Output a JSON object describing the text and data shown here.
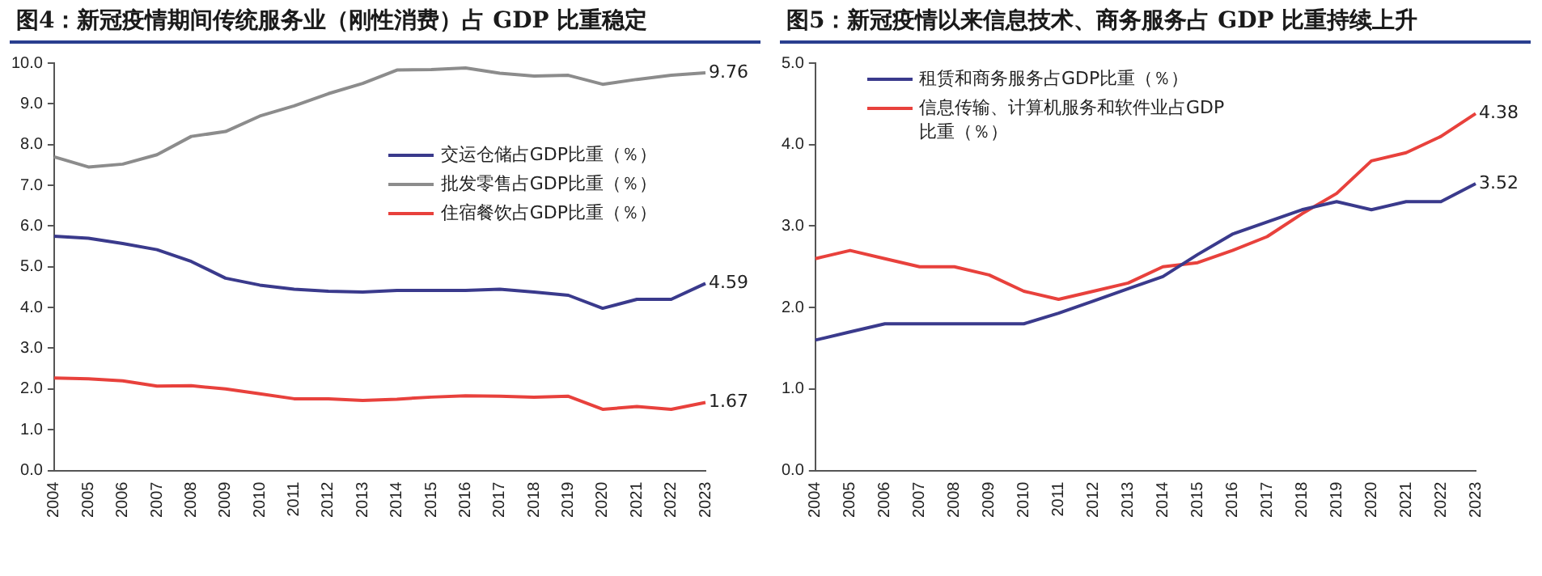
{
  "chart_data": [
    {
      "type": "line",
      "title": "图4：新冠疫情期间传统服务业（刚性消费）占 GDP 比重稳定",
      "categories": [
        "2004",
        "2005",
        "2006",
        "2007",
        "2008",
        "2009",
        "2010",
        "2011",
        "2012",
        "2013",
        "2014",
        "2015",
        "2016",
        "2017",
        "2018",
        "2019",
        "2020",
        "2021",
        "2022",
        "2023"
      ],
      "series": [
        {
          "name": "交运仓储占GDP比重（％）",
          "color": "#3a3a8c",
          "values": [
            5.75,
            5.7,
            5.57,
            5.42,
            5.13,
            4.72,
            4.55,
            4.45,
            4.4,
            4.38,
            4.42,
            4.42,
            4.42,
            4.45,
            4.38,
            4.3,
            3.98,
            4.2,
            4.2,
            4.59
          ],
          "value_labels": [
            null,
            null,
            null,
            null,
            null,
            null,
            null,
            null,
            null,
            null,
            null,
            null,
            null,
            null,
            null,
            null,
            null,
            null,
            null,
            "4.59"
          ]
        },
        {
          "name": "批发零售占GDP比重（％）",
          "color": "#8c8c8c",
          "values": [
            7.7,
            7.45,
            7.52,
            7.75,
            8.2,
            8.32,
            8.7,
            8.95,
            9.25,
            9.5,
            9.83,
            9.84,
            9.88,
            9.75,
            9.68,
            9.7,
            9.48,
            9.6,
            9.7,
            9.76
          ],
          "value_labels": [
            null,
            null,
            null,
            null,
            null,
            null,
            null,
            null,
            null,
            null,
            null,
            null,
            null,
            null,
            null,
            null,
            null,
            null,
            null,
            "9.76"
          ]
        },
        {
          "name": "住宿餐饮占GDP比重（％）",
          "color": "#e8413c",
          "values": [
            2.27,
            2.25,
            2.2,
            2.07,
            2.08,
            2.0,
            1.88,
            1.76,
            1.76,
            1.72,
            1.75,
            1.8,
            1.83,
            1.82,
            1.8,
            1.82,
            1.5,
            1.57,
            1.5,
            1.67
          ],
          "value_labels": [
            null,
            null,
            null,
            null,
            null,
            null,
            null,
            null,
            null,
            null,
            null,
            null,
            null,
            null,
            null,
            null,
            null,
            null,
            null,
            "1.67"
          ]
        }
      ],
      "ylim": [
        0,
        10
      ],
      "yticks": [
        {
          "value": 0,
          "label": "0.0"
        },
        {
          "value": 1,
          "label": "1.0"
        },
        {
          "value": 2,
          "label": "2.0"
        },
        {
          "value": 3,
          "label": "3.0"
        },
        {
          "value": 4,
          "label": "4.0"
        },
        {
          "value": 5,
          "label": "5.0"
        },
        {
          "value": 6,
          "label": "6.0"
        },
        {
          "value": 7,
          "label": "7.0"
        },
        {
          "value": 8,
          "label": "8.0"
        },
        {
          "value": 9,
          "label": "9.0"
        },
        {
          "value": 10,
          "label": "10.0"
        }
      ],
      "grid": false,
      "legend": "center right",
      "marker": "none",
      "line_style": "solid"
    },
    {
      "type": "line",
      "title": "图5：新冠疫情以来信息技术、商务服务占 GDP 比重持续上升",
      "categories": [
        "2004",
        "2005",
        "2006",
        "2007",
        "2008",
        "2009",
        "2010",
        "2011",
        "2012",
        "2013",
        "2014",
        "2015",
        "2016",
        "2017",
        "2018",
        "2019",
        "2020",
        "2021",
        "2022",
        "2023"
      ],
      "series": [
        {
          "name": "租赁和商务服务占GDP比重（％）",
          "color": "#3a3a8c",
          "values": [
            1.6,
            1.7,
            1.8,
            1.8,
            1.8,
            1.8,
            1.8,
            1.93,
            2.08,
            2.23,
            2.38,
            2.65,
            2.9,
            3.05,
            3.2,
            3.3,
            3.2,
            3.3,
            3.3,
            3.52
          ],
          "value_labels": [
            null,
            null,
            null,
            null,
            null,
            null,
            null,
            null,
            null,
            null,
            null,
            null,
            null,
            null,
            null,
            null,
            null,
            null,
            null,
            "3.52"
          ]
        },
        {
          "name": "信息传输、计算机服务和软件业占GDP比重（％）",
          "color": "#e8413c",
          "values": [
            2.6,
            2.7,
            2.6,
            2.5,
            2.5,
            2.4,
            2.2,
            2.1,
            2.2,
            2.3,
            2.5,
            2.55,
            2.7,
            2.87,
            3.15,
            3.4,
            3.8,
            3.9,
            4.1,
            4.38
          ],
          "value_labels": [
            null,
            null,
            null,
            null,
            null,
            null,
            null,
            null,
            null,
            null,
            null,
            null,
            null,
            null,
            null,
            null,
            null,
            null,
            null,
            "4.38"
          ]
        }
      ],
      "ylim": [
        0,
        5
      ],
      "yticks": [
        {
          "value": 0,
          "label": "0.0"
        },
        {
          "value": 1,
          "label": "1.0"
        },
        {
          "value": 2,
          "label": "2.0"
        },
        {
          "value": 3,
          "label": "3.0"
        },
        {
          "value": 4,
          "label": "4.0"
        },
        {
          "value": 5,
          "label": "5.0"
        }
      ],
      "grid": false,
      "legend": "top left",
      "marker": "none",
      "line_style": "solid"
    }
  ]
}
